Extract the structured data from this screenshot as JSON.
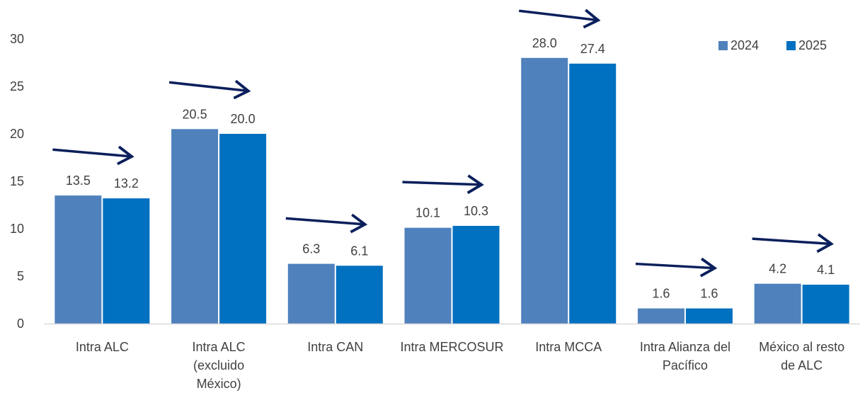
{
  "chart_data": {
    "type": "bar",
    "categories": [
      [
        "Intra ALC"
      ],
      [
        "Intra ALC",
        "(excluido",
        "México)"
      ],
      [
        "Intra CAN"
      ],
      [
        "Intra MERCOSUR"
      ],
      [
        "Intra MCCA"
      ],
      [
        "Intra Alianza del",
        "Pacífico"
      ],
      [
        "México al resto",
        "de ALC"
      ]
    ],
    "series": [
      {
        "name": "2024",
        "values": [
          13.5,
          20.5,
          6.3,
          10.1,
          28.0,
          1.6,
          4.2
        ],
        "color": "#4F81BD"
      },
      {
        "name": "2025",
        "values": [
          13.2,
          20.0,
          6.1,
          10.3,
          27.4,
          1.6,
          4.1
        ],
        "color": "#0070C0"
      }
    ],
    "data_labels": [
      [
        "13.5",
        "20.5",
        "6.3",
        "10.1",
        "28.0",
        "1.6",
        "4.2"
      ],
      [
        "13.2",
        "20.0",
        "6.1",
        "10.3",
        "27.4",
        "1.6",
        "4.1"
      ]
    ],
    "ylim": [
      0,
      30
    ],
    "yticks": [
      0,
      5,
      10,
      15,
      20,
      25,
      30
    ],
    "legend_position": "top-right",
    "grid": false,
    "annotations": {
      "type": "trend-arrows",
      "color": "#0B1F5C",
      "count": 7
    },
    "title": "",
    "xlabel": "",
    "ylabel": ""
  }
}
